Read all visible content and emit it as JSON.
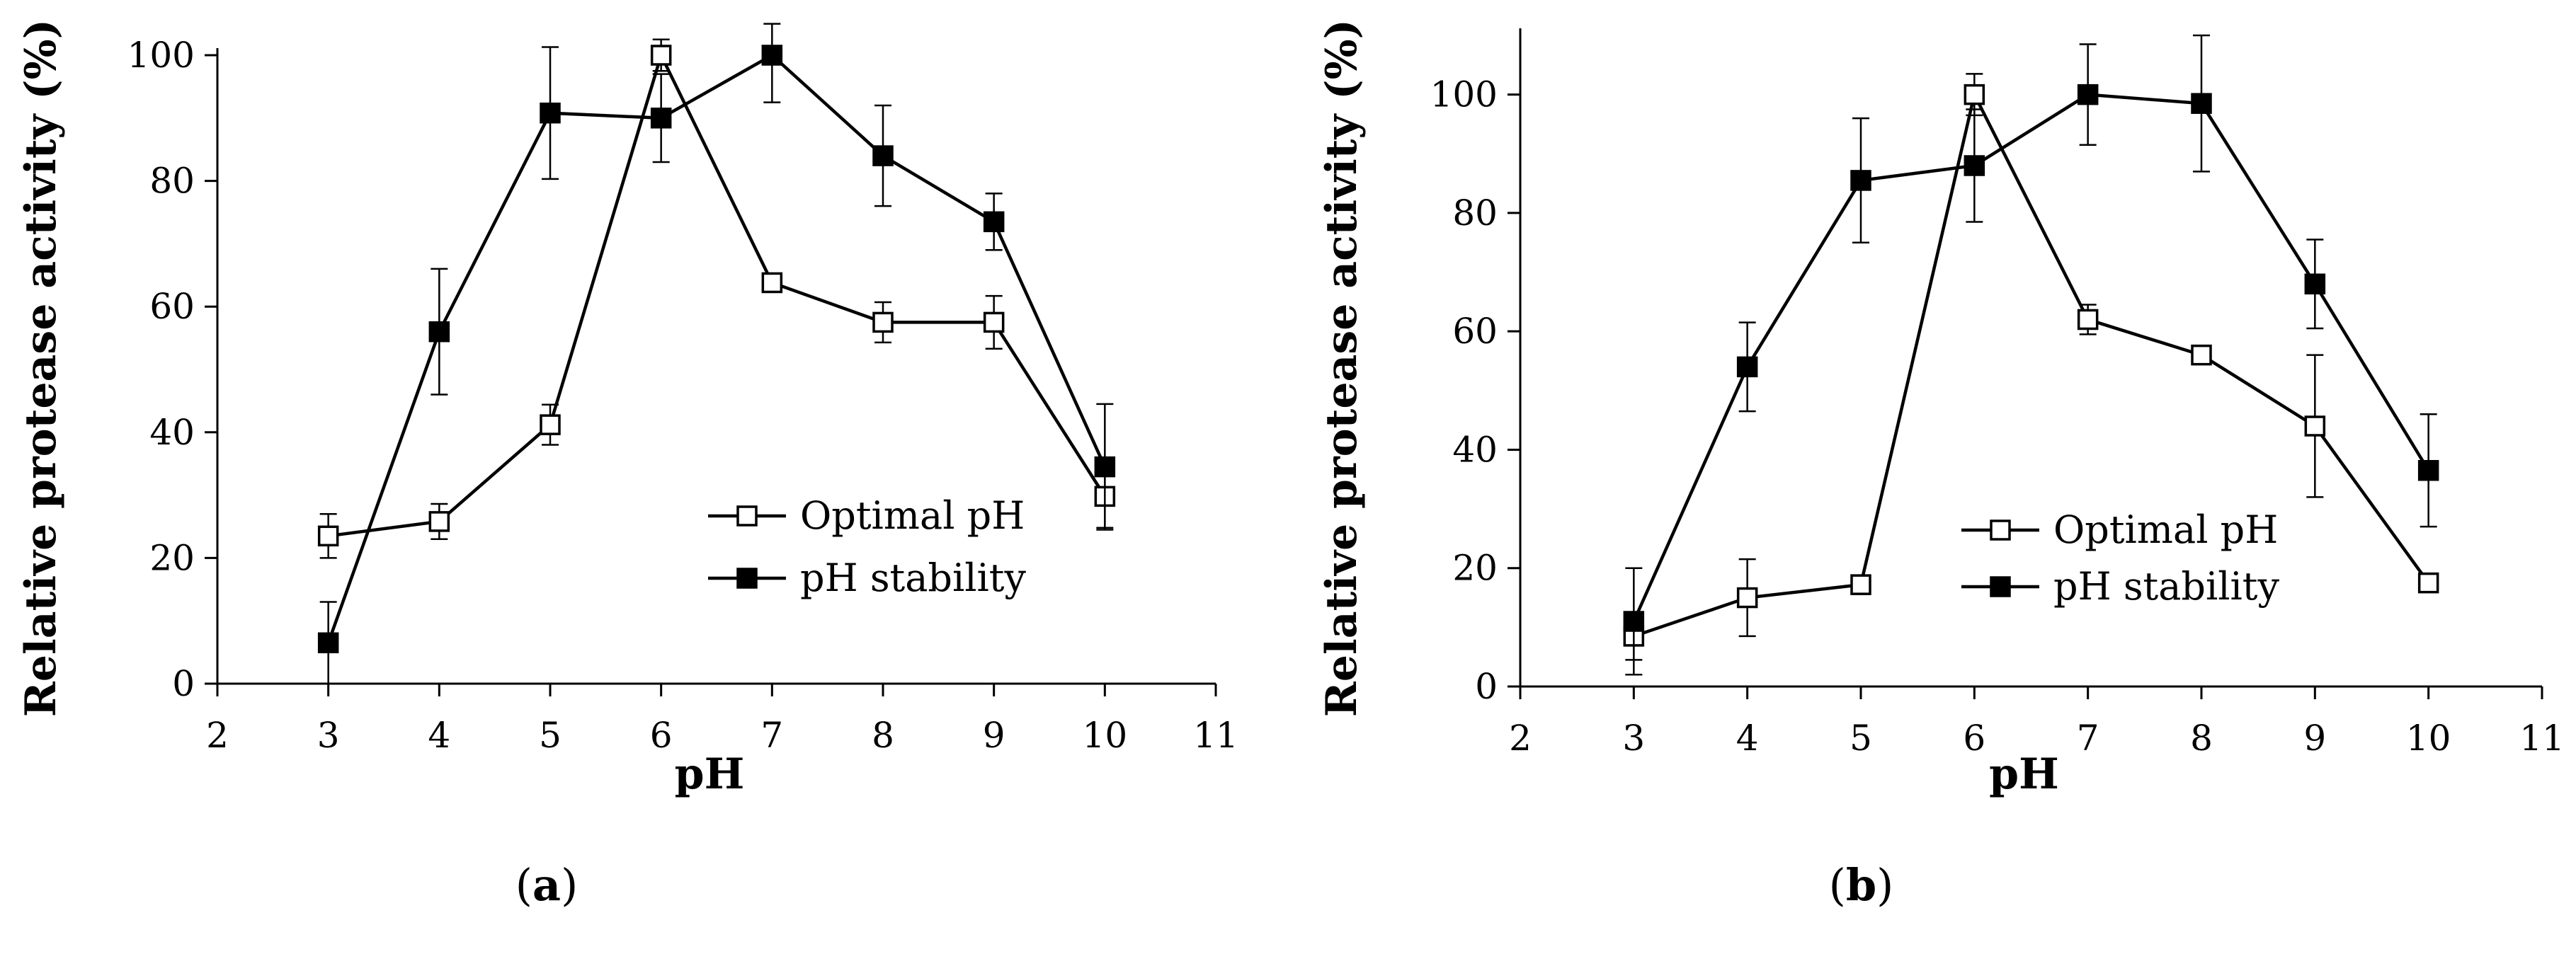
{
  "chart_data": [
    {
      "type": "line",
      "panel_label": "a",
      "xlabel": "pH",
      "ylabel": "Relative protease activity (%)",
      "xlim": [
        2,
        11
      ],
      "ylim": [
        0,
        100
      ],
      "x_ticks": [
        2,
        3,
        4,
        5,
        6,
        7,
        8,
        9,
        10,
        11
      ],
      "y_ticks": [
        0,
        20,
        40,
        60,
        80,
        100
      ],
      "grid": false,
      "legend_position": "center-right",
      "x": [
        3,
        4,
        5,
        6,
        7,
        8,
        9,
        10
      ],
      "series": [
        {
          "name": "Optimal pH",
          "marker": "open-square",
          "color": "#000000",
          "values": [
            23.5,
            25.8,
            41.2,
            100,
            63.8,
            57.5,
            57.5,
            29.8
          ],
          "error": [
            3.5,
            2.8,
            3.2,
            2.5,
            1.2,
            3.2,
            4.2,
            5.0
          ]
        },
        {
          "name": "pH stability",
          "marker": "filled-square",
          "color": "#000000",
          "values": [
            6.5,
            56.0,
            90.8,
            90.0,
            100,
            84.0,
            73.5,
            34.5
          ],
          "error": [
            6.5,
            10.0,
            10.5,
            7.0,
            7.5,
            8.0,
            4.5,
            10.0
          ]
        }
      ]
    },
    {
      "type": "line",
      "panel_label": "b",
      "xlabel": "pH",
      "ylabel": "Relative protease activity (%)",
      "xlim": [
        2,
        11
      ],
      "ylim": [
        0,
        110
      ],
      "x_ticks": [
        2,
        3,
        4,
        5,
        6,
        7,
        8,
        9,
        10,
        11
      ],
      "y_ticks": [
        0,
        20,
        40,
        60,
        80,
        100
      ],
      "grid": false,
      "legend_position": "center-right",
      "x": [
        3,
        4,
        5,
        6,
        7,
        8,
        9,
        10
      ],
      "series": [
        {
          "name": "Optimal pH",
          "marker": "open-square",
          "color": "#000000",
          "values": [
            8.5,
            15.0,
            17.2,
            100,
            62.0,
            56.0,
            44.0,
            17.5
          ],
          "error": [
            4.0,
            6.5,
            1.0,
            3.5,
            2.5,
            1.0,
            12.0,
            1.0
          ]
        },
        {
          "name": "pH stability",
          "marker": "filled-square",
          "color": "#000000",
          "values": [
            11.0,
            54.0,
            85.5,
            88.0,
            100,
            98.5,
            68.0,
            36.5
          ],
          "error": [
            9.0,
            7.5,
            10.5,
            9.5,
            8.5,
            11.5,
            7.5,
            9.5
          ]
        }
      ]
    }
  ]
}
